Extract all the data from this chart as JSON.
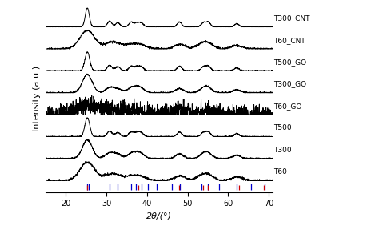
{
  "xlim": [
    15,
    71
  ],
  "xticks": [
    20,
    30,
    40,
    50,
    60,
    70
  ],
  "xlabel": "2θ/(°)",
  "ylabel": "Intensity (a.u.)",
  "background_color": "#ffffff",
  "label_names": [
    "T60",
    "T300",
    "T500",
    "T60_GO",
    "T300_GO",
    "T500_GO",
    "T60_CNT",
    "T300_CNT"
  ],
  "offsets": [
    0.0,
    0.95,
    1.9,
    2.85,
    3.8,
    4.75,
    5.7,
    6.65
  ],
  "ref_brookite_peaks": [
    25.34,
    25.69,
    30.81,
    32.82,
    36.09,
    37.36,
    38.57,
    40.18,
    42.34,
    46.04,
    48.05,
    53.49,
    55.06,
    57.82,
    62.12,
    65.68,
    68.91
  ],
  "ref_anatase_peaks": [
    25.28,
    37.8,
    47.99,
    53.89,
    55.06,
    62.69,
    68.76
  ],
  "brookite_color": "#0000cc",
  "anatase_color": "#cc0000",
  "line_color": "#000000",
  "linewidth": 0.7,
  "label_fontsize": 6.5,
  "axis_fontsize": 8,
  "tick_fontsize": 7
}
